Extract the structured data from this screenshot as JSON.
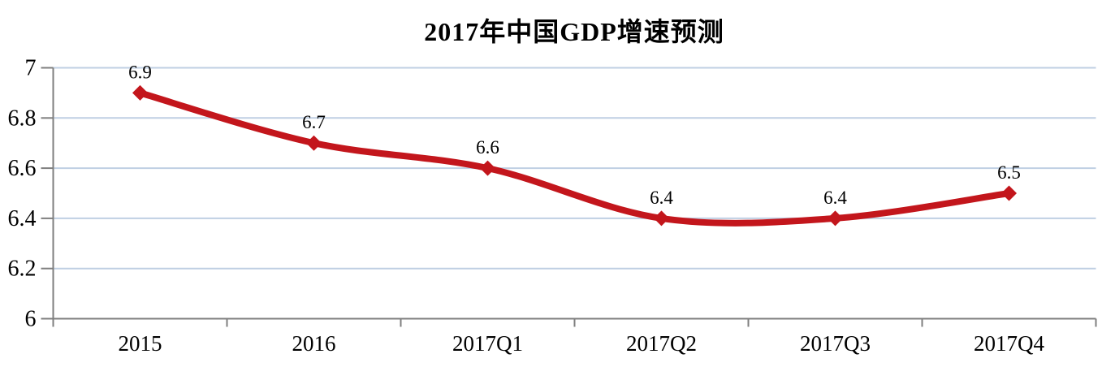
{
  "title": "2017年中国GDP增速预测",
  "colors": {
    "background": "#ffffff",
    "line": "#c3161c",
    "marker": "#c3161c",
    "gridline": "#bfcfe3",
    "axis": "#7f7f7f",
    "text": "#000000"
  },
  "chart_data": {
    "type": "line",
    "title": "2017年中国GDP增速预测",
    "categories": [
      "2015",
      "2016",
      "2017Q1",
      "2017Q2",
      "2017Q3",
      "2017Q4"
    ],
    "series": [
      {
        "name": "GDP增速",
        "values": [
          6.9,
          6.7,
          6.6,
          6.4,
          6.4,
          6.5
        ]
      }
    ],
    "data_labels": [
      "6.9",
      "6.7",
      "6.6",
      "6.4",
      "6.4",
      "6.5"
    ],
    "xlabel": "",
    "ylabel": "",
    "ylim": [
      6,
      7
    ],
    "yticks": [
      6,
      6.2,
      6.4,
      6.6,
      6.8,
      7
    ],
    "ytick_labels": [
      "6",
      "6.2",
      "6.4",
      "6.6",
      "6.8",
      "7"
    ],
    "grid": true,
    "legend": "none",
    "line_style": "smooth",
    "marker": "diamond"
  }
}
